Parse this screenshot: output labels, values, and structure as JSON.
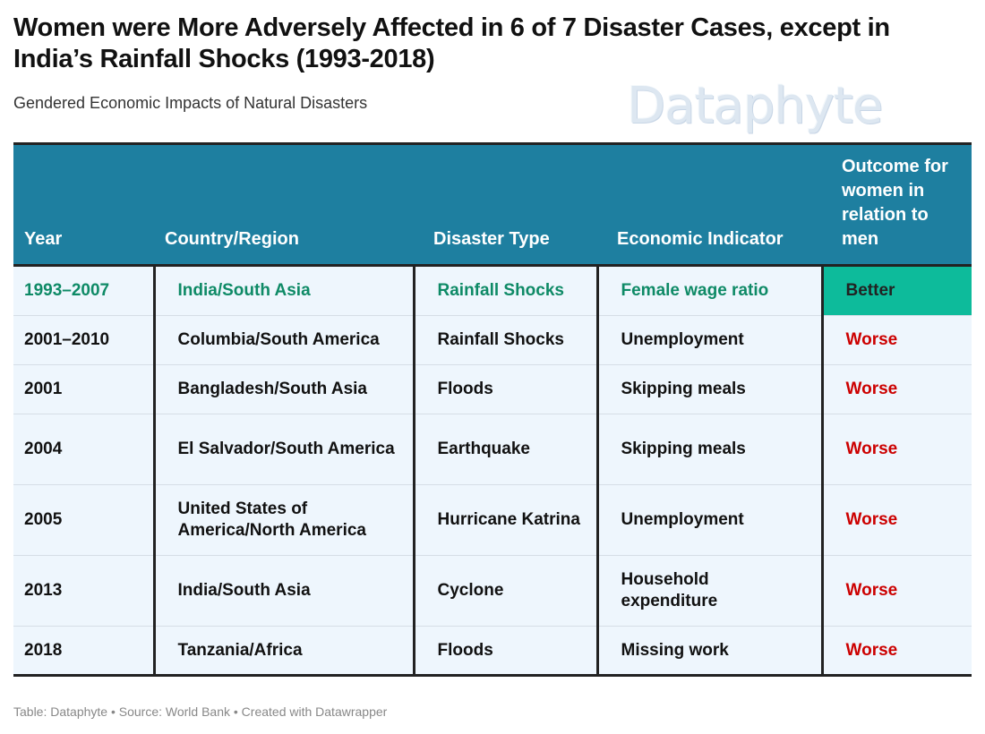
{
  "title": "Women were More Adversely Affected in 6 of 7 Disaster Cases, except in India’s Rainfall Shocks (1993-2018)",
  "subtitle": "Gendered Economic Impacts of Natural Disasters",
  "logo_text": "Dataphyte",
  "footer": "Table: Dataphyte • Source: World Bank • Created with Datawrapper",
  "colors": {
    "header_bg": "#1e7fa0",
    "row_bg": "#eef6fd",
    "highlight_text": "#0e8a66",
    "better_bg": "#0dbb9b",
    "worse_text": "#cc0000"
  },
  "chart_data": {
    "type": "table",
    "columns": [
      "Year",
      "Country/Region",
      "Disaster Type",
      "Economic Indicator",
      "Outcome for women in relation to men"
    ],
    "rows": [
      [
        "1993–2007",
        "India/South Asia",
        "Rainfall Shocks",
        "Female wage ratio",
        "Better"
      ],
      [
        "2001–2010",
        "Columbia/South America",
        "Rainfall Shocks",
        "Unemployment",
        "Worse"
      ],
      [
        "2001",
        "Bangladesh/South Asia",
        "Floods",
        "Skipping meals",
        "Worse"
      ],
      [
        "2004",
        "El Salvador/South America",
        "Earthquake",
        "Skipping meals",
        "Worse"
      ],
      [
        "2005",
        "United States of America/North America",
        "Hurricane Katrina",
        "Unemployment",
        "Worse"
      ],
      [
        "2013",
        "India/South Asia",
        "Cyclone",
        "Household expenditure",
        "Worse"
      ],
      [
        "2018",
        "Tanzania/Africa",
        "Floods",
        "Missing work",
        "Worse"
      ]
    ],
    "highlighted_row": 0
  }
}
